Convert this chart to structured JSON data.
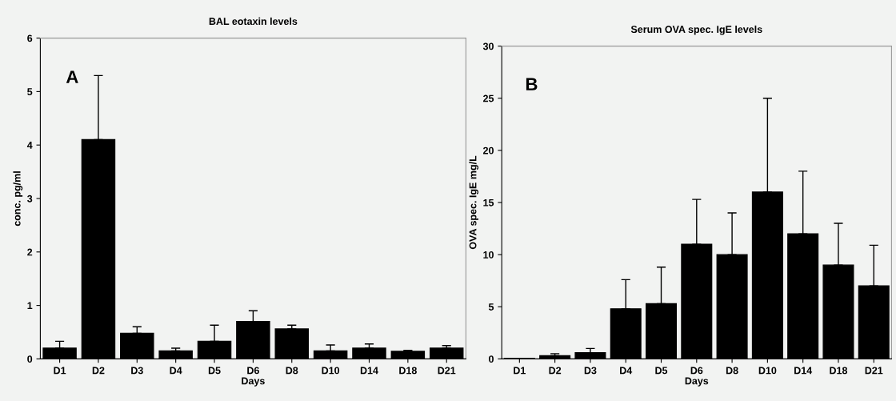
{
  "chart_data": [
    {
      "type": "bar",
      "title": "BAL eotaxin levels",
      "xlabel": "Days",
      "ylabel": "conc. pg/ml",
      "categories": [
        "D1",
        "D2",
        "D3",
        "D4",
        "D5",
        "D6",
        "D8",
        "D10",
        "D14",
        "D18",
        "D21"
      ],
      "values": [
        0.2,
        4.1,
        0.48,
        0.15,
        0.33,
        0.7,
        0.56,
        0.15,
        0.2,
        0.14,
        0.2
      ],
      "errors": [
        [
          0.2,
          0.33
        ],
        [
          4.1,
          5.3
        ],
        [
          0.48,
          0.6
        ],
        [
          0.15,
          0.2
        ],
        [
          0.33,
          0.63
        ],
        [
          0.7,
          0.9
        ],
        [
          0.56,
          0.63
        ],
        [
          0.15,
          0.26
        ],
        [
          0.2,
          0.28
        ],
        [
          0.14,
          0.16
        ],
        [
          0.2,
          0.25
        ]
      ],
      "color": "#000000",
      "ylim": [
        0,
        6
      ],
      "yticks": [
        0,
        1,
        2,
        3,
        4,
        5,
        6
      ],
      "grid": false,
      "annotations": [
        "A"
      ]
    },
    {
      "type": "bar",
      "title": "Serum OVA spec. IgE levels",
      "xlabel": "Days",
      "ylabel": "OVA spec. IgE mg/L",
      "categories": [
        "D1",
        "D2",
        "D3",
        "D4",
        "D5",
        "D6",
        "D8",
        "D10",
        "D14",
        "D18",
        "D21"
      ],
      "values": [
        0.05,
        0.3,
        0.6,
        4.8,
        5.3,
        11,
        10,
        16,
        12,
        9,
        7
      ],
      "errors": [
        null,
        [
          0.3,
          0.5
        ],
        [
          0.6,
          1.0
        ],
        [
          4.8,
          7.6
        ],
        [
          5.3,
          8.8
        ],
        [
          11,
          15.3
        ],
        [
          10,
          14
        ],
        [
          16,
          25
        ],
        [
          12,
          18
        ],
        [
          9,
          13
        ],
        [
          7,
          10.9
        ]
      ],
      "color": "#000000",
      "ylim": [
        0,
        30
      ],
      "yticks": [
        0,
        5,
        10,
        15,
        20,
        25,
        30
      ],
      "grid": false,
      "annotations": [
        "B"
      ]
    }
  ]
}
